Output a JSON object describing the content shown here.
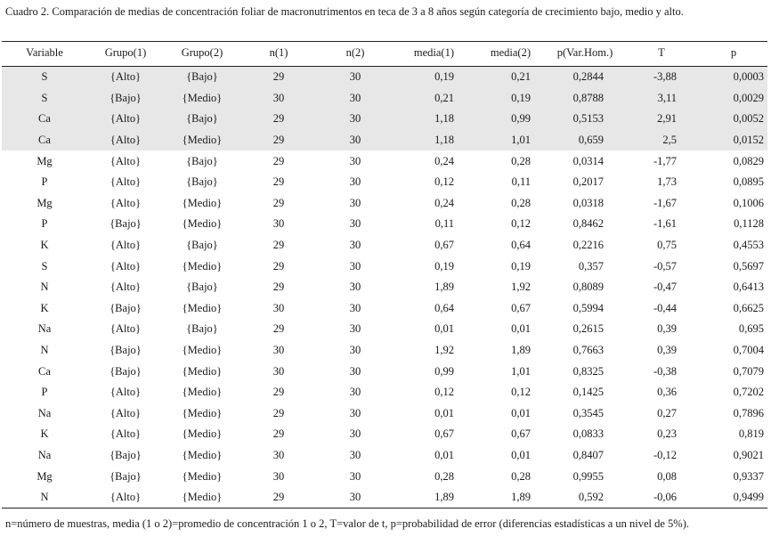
{
  "caption": "Cuadro 2.  Comparación de medias de concentración foliar de macronutrimentos en teca de 3 a 8 años según categoría de crecimiento bajo, medio y alto.",
  "headers": [
    "Variable",
    "Grupo(1)",
    "Grupo(2)",
    "n(1)",
    "n(2)",
    "media(1)",
    "media(2)",
    "p(Var.Hom.)",
    "T",
    "p"
  ],
  "rows": [
    [
      "S",
      "{Alto}",
      "{Bajo}",
      "29",
      "30",
      "0,19",
      "0,21",
      "0,2844",
      "-3,88",
      "0,0003"
    ],
    [
      "S",
      "{Bajo}",
      "{Medio}",
      "30",
      "30",
      "0,21",
      "0,19",
      "0,8788",
      "3,11",
      "0,0029"
    ],
    [
      "Ca",
      "{Alto}",
      "{Bajo}",
      "29",
      "30",
      "1,18",
      "0,99",
      "0,5153",
      "2,91",
      "0,0052"
    ],
    [
      "Ca",
      "{Alto}",
      "{Medio}",
      "29",
      "30",
      "1,18",
      "1,01",
      "0,659",
      "2,5",
      "0,0152"
    ],
    [
      "Mg",
      "{Alto}",
      "{Bajo}",
      "29",
      "30",
      "0,24",
      "0,28",
      "0,0314",
      "-1,77",
      "0,0829"
    ],
    [
      "P",
      "{Alto}",
      "{Bajo}",
      "29",
      "30",
      "0,12",
      "0,11",
      "0,2017",
      "1,73",
      "0,0895"
    ],
    [
      "Mg",
      "{Alto}",
      "{Medio}",
      "29",
      "30",
      "0,24",
      "0,28",
      "0,0318",
      "-1,67",
      "0,1006"
    ],
    [
      "P",
      "{Bajo}",
      "{Medio}",
      "30",
      "30",
      "0,11",
      "0,12",
      "0,8462",
      "-1,61",
      "0,1128"
    ],
    [
      "K",
      "{Alto}",
      "{Bajo}",
      "29",
      "30",
      "0,67",
      "0,64",
      "0,2216",
      "0,75",
      "0,4553"
    ],
    [
      "S",
      "{Alto}",
      "{Medio}",
      "29",
      "30",
      "0,19",
      "0,19",
      "0,357",
      "-0,57",
      "0,5697"
    ],
    [
      "N",
      "{Alto}",
      "{Bajo}",
      "29",
      "30",
      "1,89",
      "1,92",
      "0,8089",
      "-0,47",
      "0,6413"
    ],
    [
      "K",
      "{Bajo}",
      "{Medio}",
      "30",
      "30",
      "0,64",
      "0,67",
      "0,5994",
      "-0,44",
      "0,6625"
    ],
    [
      "Na",
      "{Alto}",
      "{Bajo}",
      "29",
      "30",
      "0,01",
      "0,01",
      "0,2615",
      "0,39",
      "0,695"
    ],
    [
      "N",
      "{Bajo}",
      "{Medio}",
      "30",
      "30",
      "1,92",
      "1,89",
      "0,7663",
      "0,39",
      "0,7004"
    ],
    [
      "Ca",
      "{Bajo}",
      "{Medio}",
      "30",
      "30",
      "0,99",
      "1,01",
      "0,8325",
      "-0,38",
      "0,7079"
    ],
    [
      "P",
      "{Alto}",
      "{Medio}",
      "29",
      "30",
      "0,12",
      "0,12",
      "0,1425",
      "0,36",
      "0,7202"
    ],
    [
      "Na",
      "{Alto}",
      "{Medio}",
      "29",
      "30",
      "0,01",
      "0,01",
      "0,3545",
      "0,27",
      "0,7896"
    ],
    [
      "K",
      "{Alto}",
      "{Medio}",
      "29",
      "30",
      "0,67",
      "0,67",
      "0,0833",
      "0,23",
      "0,819"
    ],
    [
      "Na",
      "{Bajo}",
      "{Medio}",
      "30",
      "30",
      "0,01",
      "0,01",
      "0,8407",
      "-0,12",
      "0,9021"
    ],
    [
      "Mg",
      "{Bajo}",
      "{Medio}",
      "30",
      "30",
      "0,28",
      "0,28",
      "0,9955",
      "0,08",
      "0,9337"
    ],
    [
      "N",
      "{Alto}",
      "{Medio}",
      "29",
      "30",
      "1,89",
      "1,89",
      "0,592",
      "-0,06",
      "0,9499"
    ]
  ],
  "shaded_rows": 4,
  "shade_color": "#e7e7e7",
  "footnote": "n=número de muestras, media (1 o 2)=promedio de concentración 1 o 2, T=valor de t, p=probabilidad de error (diferencias estadísticas a un nivel de 5%)."
}
